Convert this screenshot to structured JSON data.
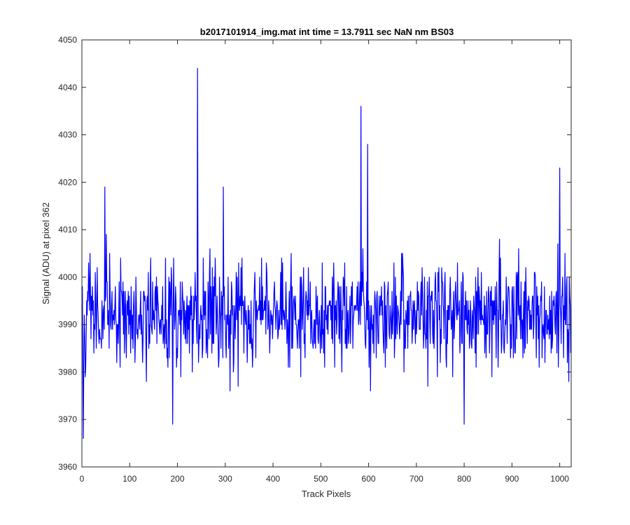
{
  "chart_data": {
    "type": "line",
    "title": "b2017101914_img.mat int time = 13.7911 sec  NaN nm BS03",
    "xlabel": "Track Pixels",
    "ylabel": "Signal (ADU) at pixel 362",
    "xlim": [
      0,
      1024
    ],
    "ylim": [
      3960,
      4050
    ],
    "xticks": [
      0,
      100,
      200,
      300,
      400,
      500,
      600,
      700,
      800,
      900,
      1000
    ],
    "yticks": [
      3960,
      3970,
      3980,
      3990,
      4000,
      4010,
      4020,
      4030,
      4040,
      4050
    ],
    "grid": false,
    "legend": "none",
    "series": [
      {
        "color": "#0000ff",
        "n_points": 1024,
        "baseline": 3992,
        "noise_range": [
          3966,
          4019
        ],
        "peaks": [
          {
            "x": 3,
            "y": 3966
          },
          {
            "x": 48,
            "y": 4019
          },
          {
            "x": 190,
            "y": 3969
          },
          {
            "x": 242,
            "y": 4044
          },
          {
            "x": 296,
            "y": 4019
          },
          {
            "x": 584,
            "y": 4036
          },
          {
            "x": 598,
            "y": 4028
          },
          {
            "x": 800,
            "y": 3969
          },
          {
            "x": 1000,
            "y": 4023
          },
          {
            "x": 1019,
            "y": 3978
          }
        ]
      }
    ]
  }
}
